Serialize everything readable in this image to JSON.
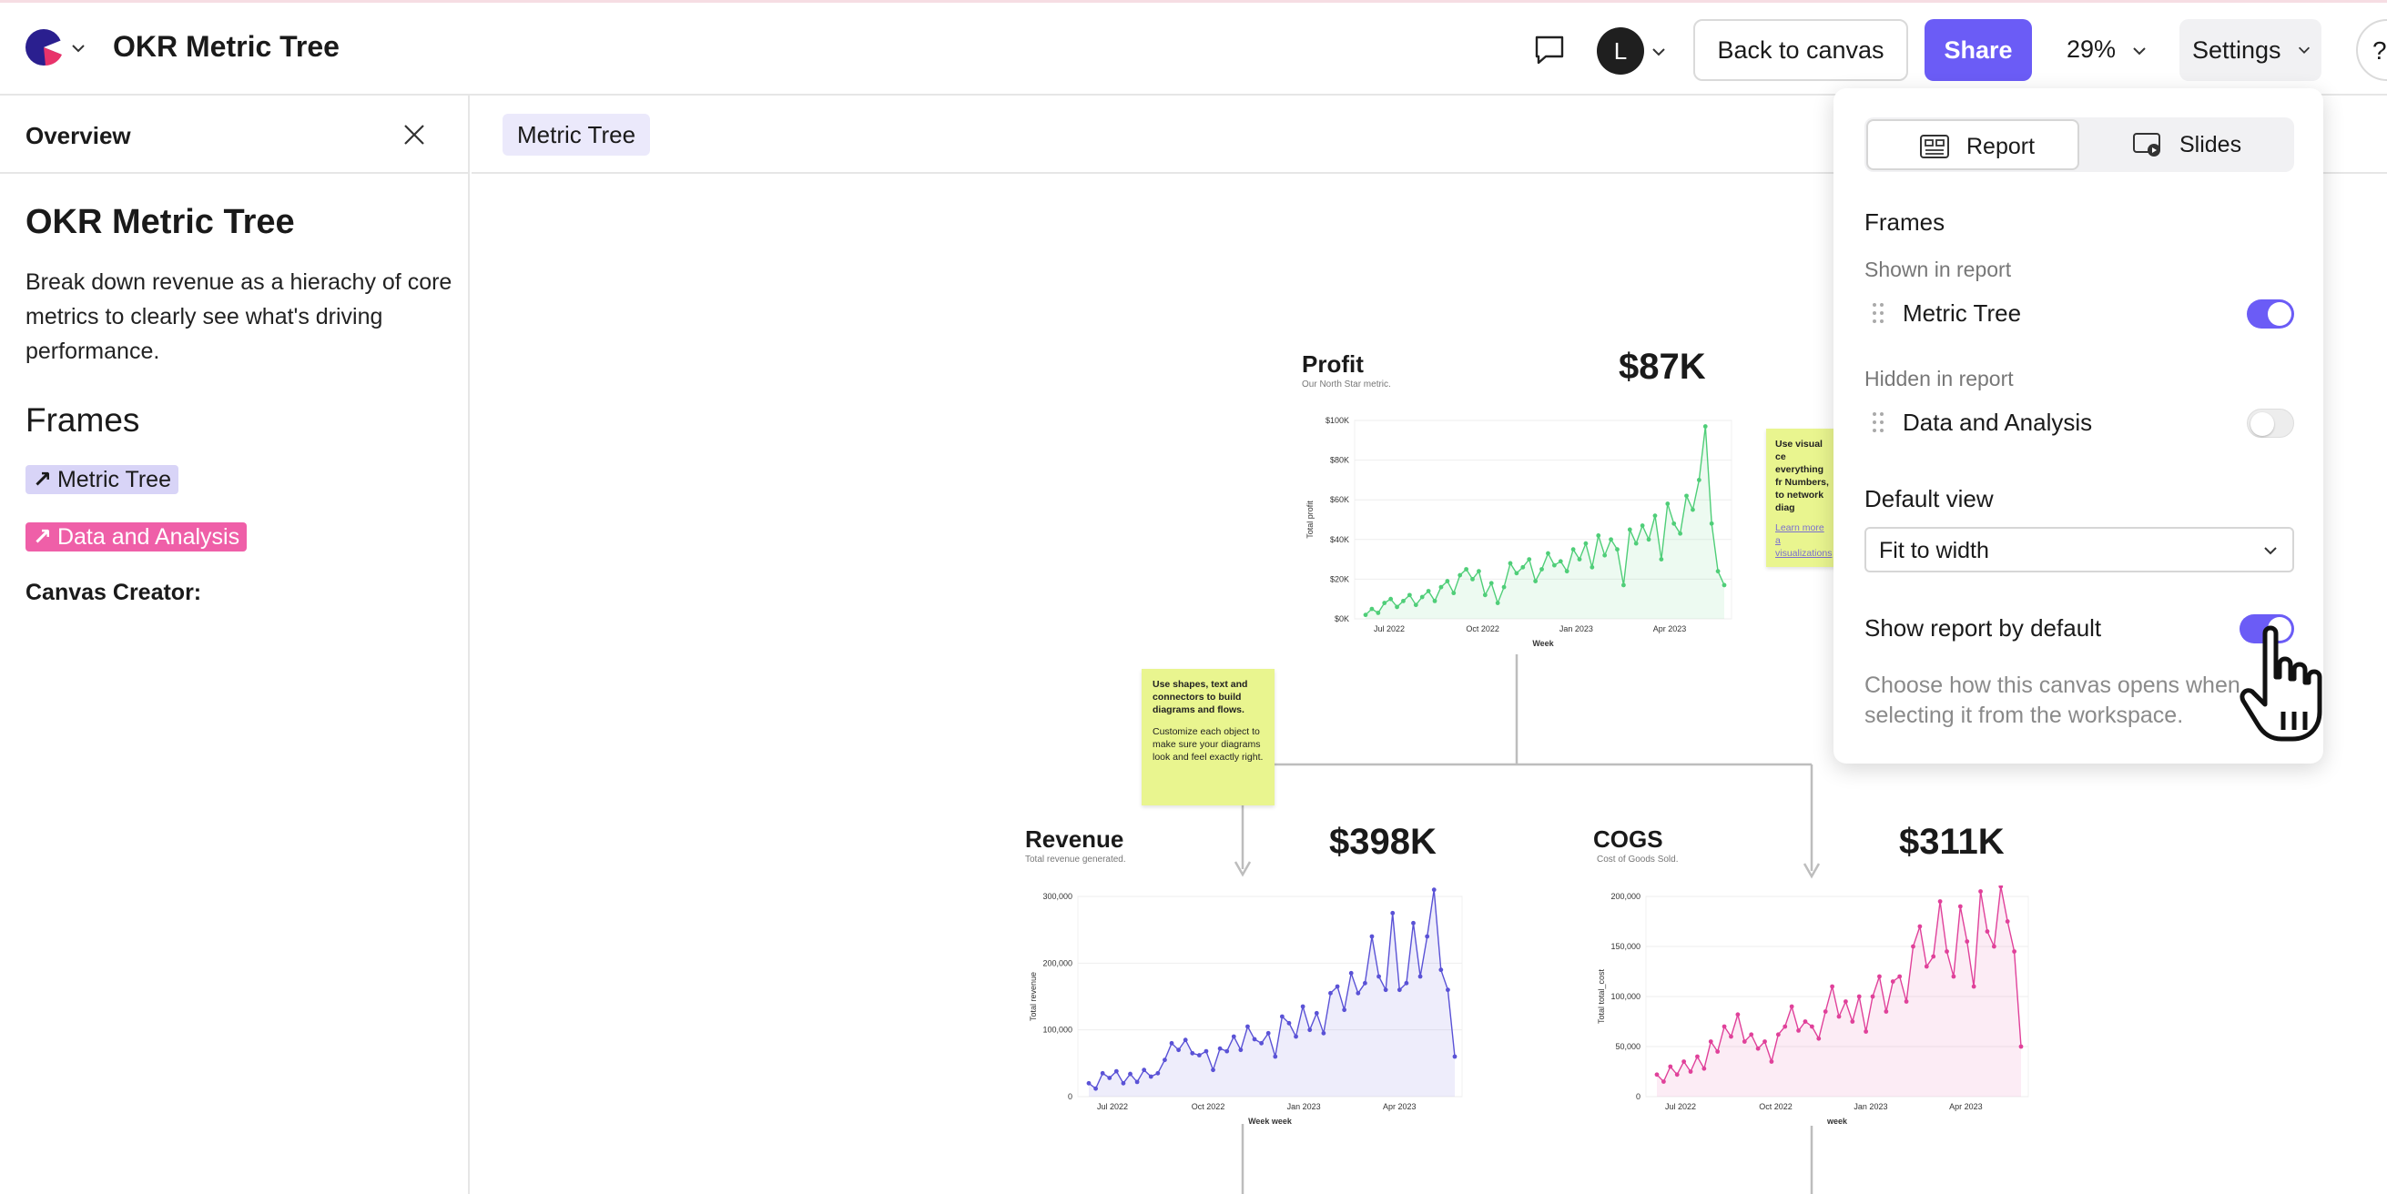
{
  "header": {
    "doc_title": "OKR Metric Tree",
    "avatar_initial": "L",
    "back_label": "Back to canvas",
    "share_label": "Share",
    "zoom": "29%",
    "settings_label": "Settings",
    "help_label": "?"
  },
  "sidebar": {
    "heading": "Overview",
    "title": "OKR Metric Tree",
    "description": "Break down revenue as a hierachy of core metrics to clearly see what's driving performance.",
    "frames_heading": "Frames",
    "frames": [
      {
        "label": "Metric Tree",
        "color": "#d8d4f7"
      },
      {
        "label": "Data and Analysis",
        "color": "#ef5fa8"
      }
    ],
    "creator_label": "Canvas Creator:"
  },
  "canvas": {
    "tab_label": "Metric Tree",
    "metrics": [
      {
        "name": "Profit",
        "subtitle": "Our North Star metric.",
        "value": "$87K"
      },
      {
        "name": "Revenue",
        "subtitle": "Total revenue generated.",
        "value": "$398K"
      },
      {
        "name": "COGS",
        "subtitle": "Cost of Goods Sold.",
        "value": "$311K"
      }
    ],
    "sticky_left": {
      "bold": "Use shapes, text and connectors to build diagrams and flows.",
      "body": "Customize each object to make sure your diagrams look and feel exactly right."
    },
    "sticky_right": {
      "bold": "Use visual ce everything fr Numbers, to network diag",
      "link": "Learn more a visualizations"
    }
  },
  "chart_data": [
    {
      "type": "line",
      "title": "Profit",
      "xlabel": "Week",
      "ylabel": "Total profit",
      "x_ticks": [
        "Jul 2022",
        "Oct 2022",
        "Jan 2023",
        "Apr 2023"
      ],
      "y_ticks": [
        "$0K",
        "$20K",
        "$40K",
        "$60K",
        "$80K",
        "$100K"
      ],
      "ylim": [
        0,
        100000
      ],
      "color": "#4fce78",
      "values": [
        2000,
        5000,
        3000,
        8000,
        10000,
        6000,
        9000,
        12000,
        7000,
        11000,
        14000,
        9000,
        16000,
        19000,
        13000,
        22000,
        25000,
        20000,
        24000,
        12000,
        18000,
        8000,
        16000,
        28000,
        23000,
        26000,
        30000,
        19000,
        25000,
        33000,
        27000,
        29000,
        24000,
        35000,
        30000,
        38000,
        26000,
        42000,
        32000,
        40000,
        35000,
        17000,
        45000,
        38000,
        47000,
        40000,
        52000,
        30000,
        58000,
        48000,
        43000,
        62000,
        55000,
        70000,
        97000,
        48000,
        24000,
        17000
      ]
    },
    {
      "type": "line",
      "title": "Revenue",
      "xlabel": "Week week",
      "ylabel": "Total revenue",
      "x_ticks": [
        "Jul 2022",
        "Oct 2022",
        "Jan 2023",
        "Apr 2023"
      ],
      "y_ticks": [
        "0",
        "100,000",
        "200,000",
        "300,000"
      ],
      "ylim": [
        0,
        300000
      ],
      "color": "#5a52d6",
      "values": [
        20000,
        12000,
        35000,
        28000,
        38000,
        20000,
        34000,
        22000,
        40000,
        30000,
        35000,
        55000,
        80000,
        70000,
        85000,
        65000,
        62000,
        68000,
        40000,
        72000,
        68000,
        90000,
        70000,
        105000,
        86000,
        80000,
        95000,
        60000,
        120000,
        110000,
        90000,
        135000,
        100000,
        125000,
        95000,
        155000,
        165000,
        130000,
        185000,
        155000,
        170000,
        240000,
        180000,
        160000,
        275000,
        160000,
        170000,
        260000,
        180000,
        240000,
        310000,
        190000,
        160000,
        60000
      ]
    },
    {
      "type": "line",
      "title": "COGS",
      "xlabel": "week",
      "ylabel": "Total total_cost",
      "x_ticks": [
        "Jul 2022",
        "Oct 2022",
        "Jan 2023",
        "Apr 2023"
      ],
      "y_ticks": [
        "0",
        "50,000",
        "100,000",
        "150,000",
        "200,000"
      ],
      "ylim": [
        0,
        200000
      ],
      "color": "#e0419a",
      "values": [
        22000,
        15000,
        30000,
        22000,
        35000,
        25000,
        40000,
        28000,
        55000,
        45000,
        70000,
        60000,
        82000,
        55000,
        62000,
        48000,
        55000,
        35000,
        62000,
        70000,
        90000,
        66000,
        75000,
        70000,
        58000,
        85000,
        110000,
        80000,
        95000,
        75000,
        100000,
        65000,
        100000,
        120000,
        85000,
        115000,
        120000,
        95000,
        150000,
        170000,
        130000,
        140000,
        195000,
        145000,
        120000,
        190000,
        155000,
        110000,
        205000,
        165000,
        150000,
        210000,
        175000,
        145000,
        50000
      ]
    }
  ],
  "settings_panel": {
    "tabs": [
      {
        "label": "Report",
        "active": true
      },
      {
        "label": "Slides",
        "active": false
      }
    ],
    "frames_heading": "Frames",
    "shown_label": "Shown in report",
    "shown_items": [
      {
        "label": "Metric Tree",
        "enabled": true
      }
    ],
    "hidden_label": "Hidden in report",
    "hidden_items": [
      {
        "label": "Data and Analysis",
        "enabled": false
      }
    ],
    "default_view_label": "Default view",
    "default_view_value": "Fit to width",
    "show_default_label": "Show report by default",
    "show_default_enabled": true,
    "note": "Choose how this canvas opens when selecting it from the workspace."
  },
  "colors": {
    "accent": "#6b5cf6",
    "sticky": "#e9f58f",
    "frame_pink": "#ef5fa8"
  }
}
